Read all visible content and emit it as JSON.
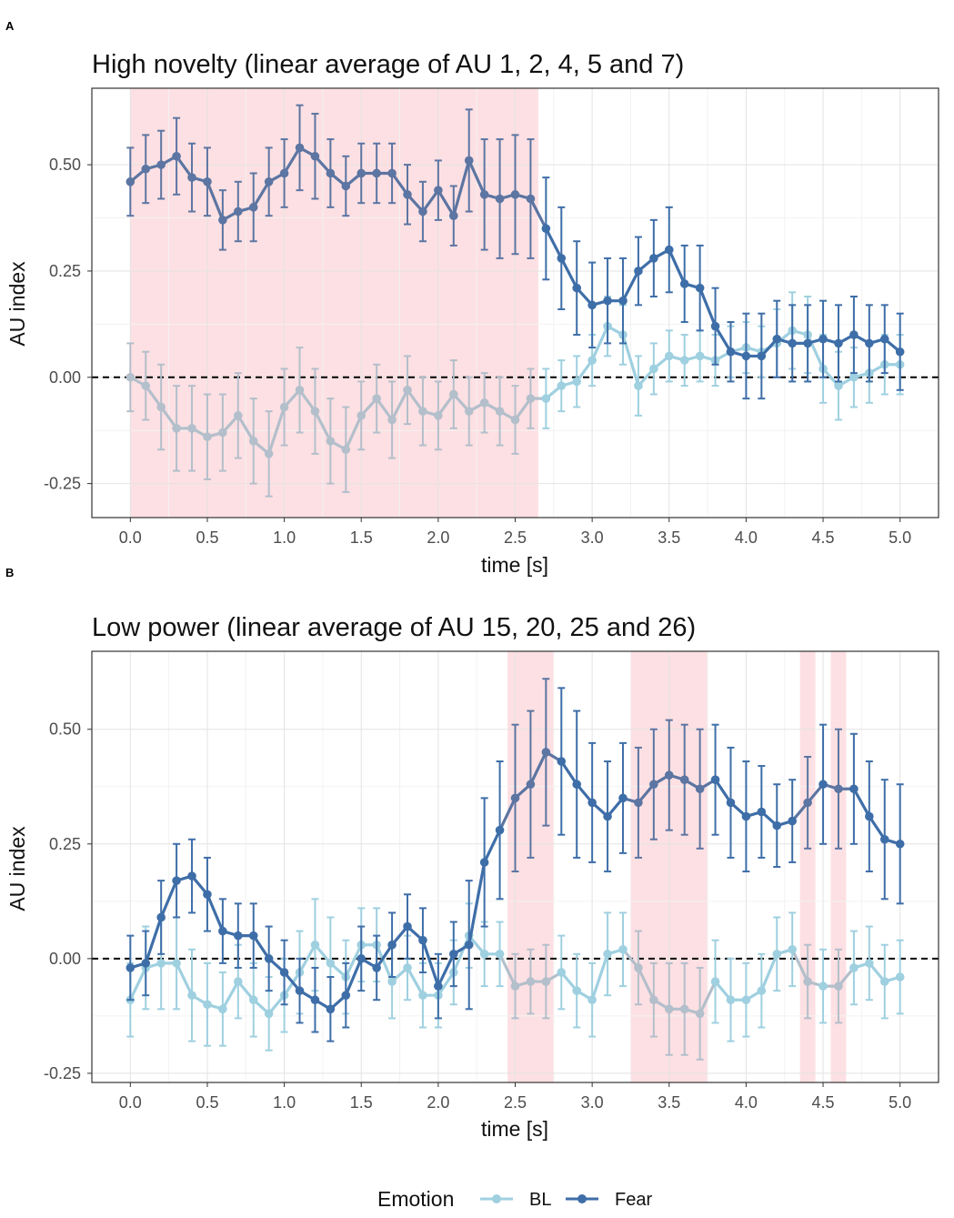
{
  "legend": {
    "title": "Emotion",
    "items": [
      {
        "label": "BL",
        "color": "#9fd0e0"
      },
      {
        "label": "Fear",
        "color": "#3e6ea8"
      }
    ]
  },
  "colors": {
    "bl": "#9fd0e0",
    "bl_shaded": "#b3bfcb",
    "fear": "#3e6ea8",
    "fear_shaded": "#5c75a2",
    "shade": "#fde0e3",
    "grid_major": "#e3e3e3",
    "grid_minor": "#f2f2f2"
  },
  "chart_data": [
    {
      "panel": "A",
      "type": "line",
      "title": "High novelty (linear average  of AU 1, 2, 4, 5 and 7)",
      "xlabel": "time [s]",
      "ylabel": "AU index",
      "xlim": [
        -0.25,
        5.25
      ],
      "ylim": [
        -0.33,
        0.68
      ],
      "xticks": [
        0.0,
        0.5,
        1.0,
        1.5,
        2.0,
        2.5,
        3.0,
        3.5,
        4.0,
        4.5,
        5.0
      ],
      "xtick_labels": [
        "0.0",
        "0.5",
        "1.0",
        "1.5",
        "2.0",
        "2.5",
        "3.0",
        "3.5",
        "4.0",
        "4.5",
        "5.0"
      ],
      "yticks": [
        -0.25,
        0.0,
        0.25,
        0.5
      ],
      "ytick_labels": [
        "-0.25",
        "0.00",
        "0.25",
        "0.50"
      ],
      "reference_line": 0,
      "shaded_regions": [
        [
          0.0,
          2.65
        ]
      ],
      "x": [
        0.0,
        0.1,
        0.2,
        0.3,
        0.4,
        0.5,
        0.6,
        0.7,
        0.8,
        0.9,
        1.0,
        1.1,
        1.2,
        1.3,
        1.4,
        1.5,
        1.6,
        1.7,
        1.8,
        1.9,
        2.0,
        2.1,
        2.2,
        2.3,
        2.4,
        2.5,
        2.6,
        2.7,
        2.8,
        2.9,
        3.0,
        3.1,
        3.2,
        3.3,
        3.4,
        3.5,
        3.6,
        3.7,
        3.8,
        3.9,
        4.0,
        4.1,
        4.2,
        4.3,
        4.4,
        4.5,
        4.6,
        4.7,
        4.8,
        4.9,
        5.0
      ],
      "series": [
        {
          "name": "BL",
          "values": [
            0.0,
            -0.02,
            -0.07,
            -0.12,
            -0.12,
            -0.14,
            -0.13,
            -0.09,
            -0.15,
            -0.18,
            -0.07,
            -0.03,
            -0.08,
            -0.15,
            -0.17,
            -0.09,
            -0.05,
            -0.1,
            -0.03,
            -0.08,
            -0.09,
            -0.04,
            -0.08,
            -0.06,
            -0.08,
            -0.1,
            -0.05,
            -0.05,
            -0.02,
            -0.01,
            0.04,
            0.12,
            0.1,
            -0.02,
            0.02,
            0.05,
            0.04,
            0.05,
            0.04,
            0.06,
            0.07,
            0.06,
            0.08,
            0.11,
            0.1,
            0.02,
            -0.02,
            0.0,
            0.01,
            0.03,
            0.03
          ],
          "errors": [
            0.08,
            0.08,
            0.1,
            0.1,
            0.1,
            0.1,
            0.09,
            0.1,
            0.1,
            0.1,
            0.09,
            0.1,
            0.1,
            0.1,
            0.1,
            0.08,
            0.08,
            0.09,
            0.08,
            0.08,
            0.08,
            0.08,
            0.08,
            0.07,
            0.08,
            0.08,
            0.07,
            0.07,
            0.06,
            0.06,
            0.06,
            0.07,
            0.07,
            0.07,
            0.06,
            0.06,
            0.06,
            0.06,
            0.06,
            0.06,
            0.06,
            0.06,
            0.08,
            0.09,
            0.09,
            0.08,
            0.08,
            0.07,
            0.07,
            0.07,
            0.07
          ]
        },
        {
          "name": "Fear",
          "values": [
            0.46,
            0.49,
            0.5,
            0.52,
            0.47,
            0.46,
            0.37,
            0.39,
            0.4,
            0.46,
            0.48,
            0.54,
            0.52,
            0.48,
            0.45,
            0.48,
            0.48,
            0.48,
            0.43,
            0.39,
            0.44,
            0.38,
            0.51,
            0.43,
            0.42,
            0.43,
            0.42,
            0.35,
            0.28,
            0.21,
            0.17,
            0.18,
            0.18,
            0.25,
            0.28,
            0.3,
            0.22,
            0.21,
            0.12,
            0.06,
            0.05,
            0.05,
            0.09,
            0.08,
            0.08,
            0.09,
            0.08,
            0.1,
            0.08,
            0.09,
            0.06
          ],
          "errors": [
            0.08,
            0.08,
            0.08,
            0.09,
            0.08,
            0.08,
            0.07,
            0.07,
            0.08,
            0.08,
            0.08,
            0.1,
            0.1,
            0.08,
            0.07,
            0.07,
            0.07,
            0.07,
            0.07,
            0.07,
            0.07,
            0.07,
            0.12,
            0.13,
            0.14,
            0.14,
            0.14,
            0.12,
            0.12,
            0.11,
            0.1,
            0.1,
            0.1,
            0.08,
            0.09,
            0.1,
            0.09,
            0.1,
            0.09,
            0.07,
            0.1,
            0.1,
            0.09,
            0.09,
            0.09,
            0.09,
            0.09,
            0.09,
            0.09,
            0.08,
            0.09
          ]
        }
      ]
    },
    {
      "panel": "B",
      "type": "line",
      "title": "Low power (linear average of AU 15, 20, 25 and 26)",
      "xlabel": "time [s]",
      "ylabel": "AU index",
      "xlim": [
        -0.25,
        5.25
      ],
      "ylim": [
        -0.27,
        0.67
      ],
      "xticks": [
        0.0,
        0.5,
        1.0,
        1.5,
        2.0,
        2.5,
        3.0,
        3.5,
        4.0,
        4.5,
        5.0
      ],
      "xtick_labels": [
        "0.0",
        "0.5",
        "1.0",
        "1.5",
        "2.0",
        "2.5",
        "3.0",
        "3.5",
        "4.0",
        "4.5",
        "5.0"
      ],
      "yticks": [
        -0.25,
        0.0,
        0.25,
        0.5
      ],
      "ytick_labels": [
        "-0.25",
        "0.00",
        "0.25",
        "0.50"
      ],
      "reference_line": 0,
      "shaded_regions": [
        [
          2.45,
          2.75
        ],
        [
          3.25,
          3.75
        ],
        [
          4.35,
          4.45
        ],
        [
          4.55,
          4.65
        ]
      ],
      "x": [
        0.0,
        0.1,
        0.2,
        0.3,
        0.4,
        0.5,
        0.6,
        0.7,
        0.8,
        0.9,
        1.0,
        1.1,
        1.2,
        1.3,
        1.4,
        1.5,
        1.6,
        1.7,
        1.8,
        1.9,
        2.0,
        2.1,
        2.2,
        2.3,
        2.4,
        2.5,
        2.6,
        2.7,
        2.8,
        2.9,
        3.0,
        3.1,
        3.2,
        3.3,
        3.4,
        3.5,
        3.6,
        3.7,
        3.8,
        3.9,
        4.0,
        4.1,
        4.2,
        4.3,
        4.4,
        4.5,
        4.6,
        4.7,
        4.8,
        4.9,
        5.0
      ],
      "series": [
        {
          "name": "BL",
          "values": [
            -0.09,
            -0.02,
            -0.01,
            -0.01,
            -0.08,
            -0.1,
            -0.11,
            -0.05,
            -0.09,
            -0.12,
            -0.08,
            -0.03,
            0.03,
            -0.01,
            -0.04,
            0.03,
            0.03,
            -0.05,
            -0.02,
            -0.08,
            -0.08,
            -0.03,
            0.05,
            0.01,
            0.01,
            -0.06,
            -0.05,
            -0.05,
            -0.03,
            -0.07,
            -0.09,
            0.01,
            0.02,
            -0.02,
            -0.09,
            -0.11,
            -0.11,
            -0.12,
            -0.05,
            -0.09,
            -0.09,
            -0.07,
            0.01,
            0.02,
            -0.05,
            -0.06,
            -0.06,
            -0.02,
            -0.01,
            -0.05,
            -0.04
          ],
          "errors": [
            0.08,
            0.09,
            0.1,
            0.1,
            0.1,
            0.09,
            0.08,
            0.08,
            0.08,
            0.08,
            0.08,
            0.09,
            0.1,
            0.1,
            0.08,
            0.08,
            0.08,
            0.08,
            0.07,
            0.07,
            0.07,
            0.07,
            0.07,
            0.07,
            0.07,
            0.07,
            0.07,
            0.08,
            0.08,
            0.08,
            0.08,
            0.09,
            0.08,
            0.08,
            0.08,
            0.1,
            0.1,
            0.1,
            0.09,
            0.09,
            0.08,
            0.08,
            0.08,
            0.08,
            0.08,
            0.08,
            0.08,
            0.08,
            0.08,
            0.08,
            0.08
          ]
        },
        {
          "name": "Fear",
          "values": [
            -0.02,
            -0.01,
            0.09,
            0.17,
            0.18,
            0.14,
            0.06,
            0.05,
            0.05,
            0.0,
            -0.03,
            -0.07,
            -0.09,
            -0.11,
            -0.08,
            0.0,
            -0.02,
            0.03,
            0.07,
            0.04,
            -0.06,
            0.01,
            0.03,
            0.21,
            0.28,
            0.35,
            0.38,
            0.45,
            0.43,
            0.38,
            0.34,
            0.31,
            0.35,
            0.34,
            0.38,
            0.4,
            0.39,
            0.37,
            0.39,
            0.34,
            0.31,
            0.32,
            0.29,
            0.3,
            0.34,
            0.38,
            0.37,
            0.37,
            0.31,
            0.26,
            0.25
          ],
          "errors": [
            0.07,
            0.07,
            0.08,
            0.08,
            0.08,
            0.08,
            0.07,
            0.07,
            0.07,
            0.07,
            0.07,
            0.07,
            0.07,
            0.07,
            0.07,
            0.07,
            0.07,
            0.07,
            0.07,
            0.07,
            0.07,
            0.07,
            0.14,
            0.14,
            0.15,
            0.16,
            0.16,
            0.16,
            0.16,
            0.16,
            0.13,
            0.12,
            0.12,
            0.12,
            0.12,
            0.12,
            0.12,
            0.13,
            0.12,
            0.12,
            0.12,
            0.1,
            0.09,
            0.09,
            0.1,
            0.13,
            0.13,
            0.12,
            0.12,
            0.13,
            0.13
          ]
        }
      ]
    }
  ]
}
